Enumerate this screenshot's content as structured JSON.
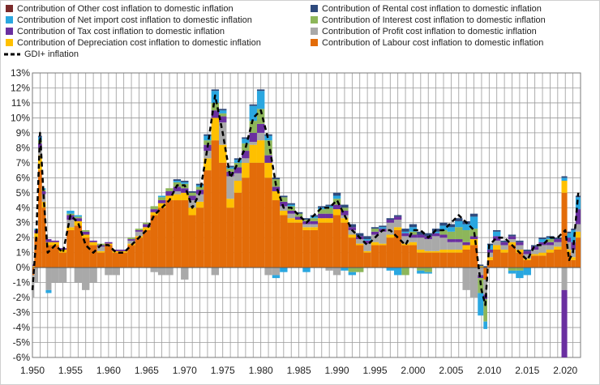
{
  "chart_data": {
    "type": "bar",
    "stacked": true,
    "x_ticks": [
      "1.950",
      "1.955",
      "1.960",
      "1.965",
      "1.970",
      "1.975",
      "1.980",
      "1.985",
      "1.990",
      "1.995",
      "2.000",
      "2.005",
      "2.010",
      "2.015",
      "2.020"
    ],
    "x_tick_values": [
      1950,
      1955,
      1960,
      1965,
      1970,
      1975,
      1980,
      1985,
      1990,
      1995,
      2000,
      2005,
      2010,
      2015,
      2020
    ],
    "y_ticks": [
      "13%",
      "12%",
      "11%",
      "10%",
      "9%",
      "8%",
      "7%",
      "6%",
      "5%",
      "4%",
      "3%",
      "2%",
      "1%",
      "0%",
      "-1%",
      "-2%",
      "-3%",
      "-4%",
      "-5%",
      "-6%"
    ],
    "xlim": [
      1950,
      2022
    ],
    "ylim": [
      -6,
      13
    ],
    "grid": true,
    "legend_position": "top",
    "legend": [
      {
        "label": "Contribution of Other cost inflation to domestic inflation",
        "color": "#7b2a2a",
        "kind": "box"
      },
      {
        "label": "Contribution of Rental cost inflation to domestic inflation",
        "color": "#2e4a7d",
        "kind": "box"
      },
      {
        "label": "Contribution of Net import cost inflation to domestic inflation",
        "color": "#2aa7e0",
        "kind": "box"
      },
      {
        "label": "Contribution of Interest cost inflation to domestic inflation",
        "color": "#8db65a",
        "kind": "box"
      },
      {
        "label": "Contribution of Tax cost inflation to domestic inflation",
        "color": "#6a2fa0",
        "kind": "box"
      },
      {
        "label": "Contribution of Profit cost inflation to domestic inflation",
        "color": "#a9a9a9",
        "kind": "box"
      },
      {
        "label": "Contribution of Depreciation cost inflation to domestic inflation",
        "color": "#ffc000",
        "kind": "box"
      },
      {
        "label": "Contribution of Labour cost inflation to domestic inflation",
        "color": "#e36c09",
        "kind": "box"
      },
      {
        "label": "GDI+ inflation",
        "color": "#000000",
        "kind": "dash"
      }
    ],
    "x": [
      1950,
      1950.5,
      1951,
      1951.5,
      1952,
      1953,
      1954,
      1955,
      1956,
      1957,
      1958,
      1959,
      1960,
      1961,
      1962,
      1963,
      1964,
      1965,
      1966,
      1967,
      1968,
      1969,
      1970,
      1971,
      1972,
      1973,
      1974,
      1975,
      1976,
      1977,
      1978,
      1979,
      1980,
      1981,
      1982,
      1983,
      1984,
      1985,
      1986,
      1987,
      1988,
      1989,
      1990,
      1991,
      1992,
      1993,
      1994,
      1995,
      1996,
      1997,
      1998,
      1999,
      2000,
      2001,
      2002,
      2003,
      2004,
      2005,
      2006,
      2007,
      2008,
      2009,
      2009.5,
      2010,
      2011,
      2012,
      2013,
      2014,
      2015,
      2016,
      2017,
      2018,
      2019,
      2020,
      2020.5,
      2021,
      2021.7
    ],
    "series": [
      {
        "name": "Contribution of Labour cost inflation to domestic inflation",
        "color": "#e36c09",
        "values": [
          -0.5,
          2.0,
          6.5,
          4.0,
          1.5,
          1.5,
          1.0,
          2.5,
          2.8,
          2.0,
          1.5,
          1.0,
          1.5,
          1.0,
          1.0,
          1.5,
          2.0,
          2.5,
          3.5,
          4.0,
          4.5,
          4.5,
          4.5,
          3.5,
          4.0,
          6.5,
          8.5,
          7.0,
          4.0,
          5.0,
          6.0,
          7.0,
          7.0,
          6.0,
          4.5,
          3.5,
          3.0,
          3.0,
          2.5,
          2.5,
          3.0,
          3.0,
          3.5,
          3.0,
          2.0,
          1.5,
          1.0,
          1.5,
          1.5,
          2.0,
          2.5,
          1.5,
          1.5,
          1.0,
          1.0,
          1.0,
          1.0,
          1.0,
          1.0,
          1.2,
          1.5,
          0.0,
          -0.8,
          0.5,
          1.2,
          1.0,
          1.5,
          1.0,
          0.5,
          0.8,
          0.8,
          1.0,
          1.2,
          5.0,
          1.0,
          0.5,
          2.0
        ]
      },
      {
        "name": "Contribution of Depreciation cost inflation to domestic inflation",
        "color": "#ffc000",
        "values": [
          0.1,
          0.3,
          1.0,
          0.4,
          0.2,
          0.2,
          0.2,
          0.2,
          0.3,
          0.2,
          0.2,
          0.1,
          0.1,
          0.1,
          0.1,
          0.1,
          0.1,
          0.2,
          0.2,
          0.3,
          0.3,
          0.4,
          0.5,
          0.5,
          0.4,
          0.8,
          1.5,
          1.2,
          0.6,
          0.8,
          1.0,
          1.2,
          1.5,
          1.0,
          0.6,
          0.3,
          0.3,
          0.2,
          0.2,
          0.2,
          0.3,
          0.3,
          0.4,
          0.3,
          0.2,
          0.1,
          0.1,
          0.2,
          0.1,
          0.2,
          0.2,
          0.1,
          0.2,
          0.2,
          0.1,
          0.1,
          0.2,
          0.2,
          0.2,
          0.3,
          0.4,
          0.1,
          0.0,
          0.2,
          0.3,
          0.2,
          0.2,
          0.2,
          0.1,
          0.1,
          0.2,
          0.2,
          0.2,
          0.8,
          0.2,
          0.2,
          0.4
        ]
      },
      {
        "name": "Contribution of Profit cost inflation to domestic inflation",
        "color": "#a9a9a9",
        "values": [
          -1.5,
          -1.0,
          0.5,
          0.5,
          -1.5,
          -1.0,
          -1.0,
          0.5,
          -1.0,
          -1.5,
          -1.0,
          0.3,
          -0.5,
          -0.5,
          0.0,
          0.2,
          0.3,
          0.0,
          -0.3,
          -0.5,
          -0.5,
          0.2,
          -0.8,
          0.5,
          0.5,
          0.5,
          -0.5,
          1.5,
          1.5,
          0.5,
          0.3,
          0.2,
          0.5,
          -0.5,
          -0.5,
          0.3,
          0.3,
          0.0,
          0.2,
          0.2,
          0.0,
          -0.2,
          -0.5,
          0.2,
          0.3,
          0.3,
          0.5,
          0.5,
          0.8,
          0.8,
          0.5,
          0.5,
          0.3,
          0.8,
          0.8,
          1.0,
          0.8,
          0.5,
          0.5,
          -1.5,
          -2.0,
          -0.5,
          -1.0,
          0.3,
          0.3,
          0.3,
          0.2,
          0.3,
          0.3,
          0.3,
          0.5,
          0.3,
          0.3,
          -1.5,
          0.5,
          0.5,
          0.5
        ]
      },
      {
        "name": "Contribution of Tax cost inflation to domestic inflation",
        "color": "#6a2fa0",
        "values": [
          0.1,
          0.2,
          0.3,
          0.2,
          0.2,
          0.1,
          0.1,
          0.3,
          0.2,
          0.2,
          0.1,
          0.1,
          0.1,
          0.1,
          0.1,
          0.1,
          0.1,
          0.2,
          0.2,
          0.2,
          0.3,
          0.3,
          0.3,
          0.3,
          0.3,
          0.4,
          0.5,
          0.4,
          0.3,
          0.4,
          0.5,
          0.6,
          0.6,
          0.5,
          0.3,
          0.3,
          0.2,
          0.2,
          0.2,
          0.2,
          0.3,
          0.3,
          0.3,
          0.3,
          0.2,
          0.2,
          0.2,
          0.2,
          0.2,
          0.2,
          0.2,
          0.2,
          0.2,
          0.2,
          0.2,
          0.2,
          0.2,
          0.2,
          0.2,
          0.2,
          0.2,
          -0.2,
          -0.3,
          0.2,
          0.3,
          0.2,
          0.2,
          0.2,
          0.2,
          0.2,
          0.2,
          0.2,
          0.2,
          -5.0,
          0.3,
          0.5,
          1.0
        ]
      },
      {
        "name": "Contribution of Interest cost inflation to domestic inflation",
        "color": "#8db65a",
        "values": [
          0.0,
          0.0,
          0.2,
          0.1,
          0.0,
          0.0,
          0.0,
          0.1,
          0.1,
          0.1,
          0.0,
          0.1,
          0.0,
          0.0,
          0.0,
          0.1,
          0.1,
          0.1,
          0.2,
          0.2,
          0.2,
          0.3,
          0.3,
          0.2,
          0.2,
          0.3,
          0.5,
          0.2,
          0.2,
          0.3,
          0.5,
          0.8,
          1.0,
          1.0,
          0.5,
          0.3,
          0.3,
          0.2,
          0.1,
          0.2,
          0.3,
          0.4,
          0.4,
          0.2,
          -0.3,
          -0.3,
          0.0,
          0.2,
          0.0,
          0.0,
          0.0,
          -0.5,
          0.2,
          -0.2,
          -0.3,
          0.0,
          0.3,
          0.5,
          0.8,
          0.8,
          0.5,
          -1.0,
          -1.5,
          0.0,
          0.0,
          0.0,
          -0.2,
          -0.2,
          0.0,
          0.0,
          0.0,
          0.2,
          0.0,
          0.0,
          0.0,
          0.0,
          0.0
        ]
      },
      {
        "name": "Contribution of Net import cost inflation to domestic inflation",
        "color": "#2aa7e0",
        "values": [
          0.0,
          0.1,
          0.2,
          0.1,
          -0.2,
          0.0,
          0.0,
          0.2,
          0.1,
          0.0,
          0.0,
          0.0,
          0.0,
          0.0,
          0.0,
          0.0,
          0.0,
          0.0,
          0.0,
          0.1,
          0.0,
          0.1,
          0.1,
          0.0,
          0.1,
          0.3,
          0.8,
          0.2,
          0.1,
          0.2,
          0.3,
          1.0,
          1.2,
          0.3,
          -0.2,
          -0.3,
          0.1,
          0.0,
          -0.3,
          0.1,
          0.1,
          0.1,
          0.2,
          -0.2,
          -0.2,
          0.0,
          0.1,
          0.0,
          0.1,
          -0.2,
          -0.5,
          0.1,
          0.3,
          -0.2,
          -0.1,
          0.1,
          0.3,
          0.3,
          0.4,
          0.4,
          0.8,
          -1.5,
          -0.5,
          0.3,
          0.3,
          0.0,
          -0.2,
          -0.5,
          -0.5,
          0.0,
          0.2,
          0.1,
          0.0,
          0.2,
          0.3,
          0.8,
          0.8
        ]
      },
      {
        "name": "Contribution of Rental cost inflation to domestic inflation",
        "color": "#2e4a7d",
        "values": [
          0.0,
          0.0,
          0.1,
          0.0,
          0.0,
          0.0,
          0.0,
          0.0,
          0.0,
          0.0,
          0.0,
          0.0,
          0.0,
          0.0,
          0.0,
          0.0,
          0.0,
          0.0,
          0.0,
          0.0,
          0.0,
          0.1,
          0.1,
          0.1,
          0.1,
          0.1,
          0.1,
          0.1,
          0.1,
          0.1,
          0.1,
          0.1,
          0.1,
          0.1,
          0.1,
          0.1,
          0.1,
          0.1,
          0.1,
          0.1,
          0.1,
          0.1,
          0.2,
          0.2,
          0.2,
          0.2,
          0.2,
          0.1,
          0.1,
          0.1,
          0.1,
          0.2,
          0.2,
          0.2,
          0.2,
          0.2,
          0.2,
          0.2,
          0.2,
          0.2,
          0.2,
          0.1,
          0.1,
          0.1,
          0.1,
          0.1,
          0.1,
          0.1,
          0.1,
          0.1,
          0.1,
          0.1,
          0.1,
          0.1,
          0.1,
          0.1,
          0.1
        ]
      },
      {
        "name": "Contribution of Other cost inflation to domestic inflation",
        "color": "#7b2a2a",
        "values": [
          0.0,
          0.0,
          0.0,
          0.0,
          0.0,
          0.0,
          0.0,
          0.0,
          0.0,
          0.0,
          0.0,
          0.0,
          0.0,
          0.0,
          0.0,
          0.0,
          0.0,
          0.0,
          0.0,
          0.0,
          0.0,
          0.0,
          0.0,
          0.0,
          0.0,
          0.0,
          0.0,
          0.0,
          0.0,
          0.0,
          0.0,
          0.0,
          0.0,
          0.0,
          0.0,
          0.0,
          0.0,
          0.0,
          0.0,
          0.0,
          0.0,
          0.0,
          0.0,
          0.0,
          0.0,
          0.0,
          0.0,
          0.0,
          0.0,
          0.0,
          0.0,
          0.0,
          0.0,
          0.0,
          0.0,
          0.0,
          0.0,
          0.0,
          0.0,
          0.0,
          0.0,
          0.0,
          0.0,
          0.0,
          0.0,
          0.0,
          0.0,
          0.0,
          0.0,
          0.0,
          0.0,
          0.0,
          0.0,
          0.0,
          0.0,
          0.0,
          0.0
        ]
      }
    ],
    "line": {
      "name": "GDI+ inflation",
      "color": "#000000",
      "x": [
        1950,
        1950.5,
        1951,
        1951.5,
        1952,
        1953,
        1954,
        1955,
        1956,
        1957,
        1958,
        1959,
        1960,
        1961,
        1962,
        1963,
        1964,
        1965,
        1966,
        1967,
        1968,
        1969,
        1970,
        1971,
        1972,
        1973,
        1974,
        1975,
        1976,
        1977,
        1978,
        1979,
        1980,
        1981,
        1982,
        1983,
        1984,
        1985,
        1986,
        1987,
        1988,
        1989,
        1990,
        1991,
        1992,
        1993,
        1994,
        1995,
        1996,
        1997,
        1998,
        1999,
        2000,
        2001,
        2002,
        2003,
        2004,
        2005,
        2006,
        2007,
        2008,
        2009,
        2009.5,
        2010,
        2011,
        2012,
        2013,
        2014,
        2015,
        2016,
        2017,
        2018,
        2019,
        2020,
        2020.5,
        2021,
        2021.7
      ],
      "values": [
        -1.5,
        2.0,
        9.0,
        4.5,
        1.0,
        1.5,
        1.0,
        3.5,
        3.0,
        1.5,
        1.0,
        1.5,
        1.5,
        1.0,
        1.0,
        1.5,
        2.0,
        2.5,
        3.5,
        4.0,
        4.5,
        5.5,
        5.5,
        4.0,
        5.0,
        8.0,
        11.5,
        9.0,
        6.0,
        7.0,
        8.0,
        10.0,
        10.5,
        8.5,
        5.5,
        4.0,
        4.0,
        3.5,
        3.0,
        3.5,
        4.0,
        4.0,
        4.5,
        3.5,
        2.5,
        2.0,
        1.5,
        2.0,
        2.5,
        2.5,
        2.0,
        1.5,
        2.5,
        2.5,
        2.0,
        2.5,
        2.5,
        3.0,
        3.5,
        3.0,
        2.5,
        -1.5,
        -2.5,
        1.5,
        2.0,
        2.0,
        1.5,
        1.0,
        0.5,
        1.5,
        1.5,
        2.0,
        2.0,
        2.5,
        0.5,
        1.0,
        5.0
      ]
    }
  }
}
